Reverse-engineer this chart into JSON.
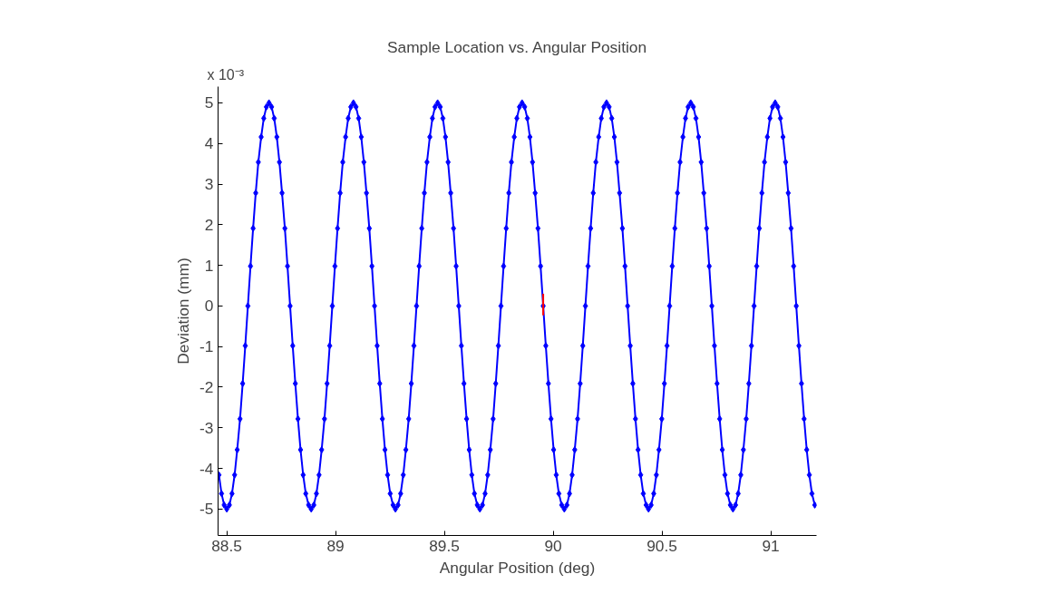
{
  "chart_data": {
    "type": "line",
    "title": "Sample Location vs. Angular Position",
    "xlabel": "Angular Position (deg)",
    "ylabel": "Deviation (mm)",
    "annotations": [
      "x 10⁻³"
    ],
    "xlim": [
      88.46,
      91.21
    ],
    "ylim": [
      -5.65,
      5.4
    ],
    "xticks": [
      88.5,
      89,
      89.5,
      90,
      90.5,
      91
    ],
    "yticks": [
      -5,
      -4,
      -3,
      -2,
      -1,
      0,
      1,
      2,
      3,
      4,
      5
    ],
    "grid": false,
    "marker": "diamond",
    "line_style": "solid",
    "series": [
      {
        "color": "#0000ff",
        "x": [
          88.464,
          88.476,
          88.488,
          88.5,
          88.512,
          88.524,
          88.536,
          88.548,
          88.561,
          88.573,
          88.585,
          88.597,
          88.609,
          88.621,
          88.633,
          88.645,
          88.658,
          88.67,
          88.682,
          88.694,
          88.706,
          88.718,
          88.73,
          88.742,
          88.754,
          88.767,
          88.779,
          88.791,
          88.803,
          88.815,
          88.827,
          88.839,
          88.851,
          88.863,
          88.876,
          88.888,
          88.9,
          88.912,
          88.924,
          88.936,
          88.949,
          88.961,
          88.973,
          88.985,
          88.997,
          89.009,
          89.021,
          89.033,
          89.046,
          89.058,
          89.07,
          89.082,
          89.094,
          89.106,
          89.118,
          89.13,
          89.142,
          89.155,
          89.167,
          89.179,
          89.191,
          89.203,
          89.215,
          89.227,
          89.239,
          89.251,
          89.264,
          89.275,
          89.287,
          89.299,
          89.311,
          89.323,
          89.336,
          89.348,
          89.36,
          89.372,
          89.384,
          89.396,
          89.408,
          89.42,
          89.433,
          89.445,
          89.457,
          89.469,
          89.481,
          89.493,
          89.505,
          89.517,
          89.529,
          89.542,
          89.554,
          89.566,
          89.578,
          89.59,
          89.602,
          89.614,
          89.626,
          89.638,
          89.651,
          89.663,
          89.675,
          89.687,
          89.699,
          89.711,
          89.724,
          89.736,
          89.748,
          89.76,
          89.772,
          89.784,
          89.796,
          89.808,
          89.821,
          89.833,
          89.845,
          89.857,
          89.869,
          89.881,
          89.893,
          89.905,
          89.917,
          89.93,
          89.942,
          89.954,
          89.966,
          89.978,
          89.99,
          90.002,
          90.014,
          90.026,
          90.039,
          90.051,
          90.063,
          90.075,
          90.087,
          90.099,
          90.112,
          90.124,
          90.136,
          90.148,
          90.16,
          90.172,
          90.184,
          90.196,
          90.209,
          90.221,
          90.233,
          90.245,
          90.257,
          90.269,
          90.281,
          90.293,
          90.305,
          90.318,
          90.33,
          90.342,
          90.354,
          90.366,
          90.378,
          90.39,
          90.402,
          90.414,
          90.427,
          90.438,
          90.45,
          90.462,
          90.474,
          90.486,
          90.499,
          90.511,
          90.523,
          90.535,
          90.547,
          90.559,
          90.571,
          90.583,
          90.596,
          90.608,
          90.62,
          90.632,
          90.644,
          90.656,
          90.668,
          90.68,
          90.692,
          90.705,
          90.717,
          90.729,
          90.741,
          90.753,
          90.765,
          90.777,
          90.789,
          90.801,
          90.814,
          90.826,
          90.838,
          90.85,
          90.862,
          90.874,
          90.887,
          90.899,
          90.911,
          90.923,
          90.935,
          90.947,
          90.959,
          90.971,
          90.984,
          90.996,
          91.008,
          91.02,
          91.032,
          91.044,
          91.056,
          91.068,
          91.08,
          91.093,
          91.105,
          91.117,
          91.129,
          91.141,
          91.153,
          91.165,
          91.177,
          91.189,
          91.202
        ],
        "values": [
          -4.16,
          -4.62,
          -4.9,
          -5,
          -4.9,
          -4.62,
          -4.16,
          -3.54,
          -2.78,
          -1.91,
          -0.98,
          0,
          0.98,
          1.91,
          2.78,
          3.54,
          4.16,
          4.62,
          4.9,
          5,
          4.9,
          4.62,
          4.16,
          3.54,
          2.78,
          1.91,
          0.98,
          0,
          -0.98,
          -1.91,
          -2.78,
          -3.54,
          -4.16,
          -4.62,
          -4.9,
          -5,
          -4.9,
          -4.62,
          -4.16,
          -3.54,
          -2.78,
          -1.91,
          -0.98,
          0,
          0.98,
          1.91,
          2.78,
          3.54,
          4.16,
          4.62,
          4.9,
          5,
          4.9,
          4.62,
          4.16,
          3.54,
          2.78,
          1.91,
          0.98,
          0,
          -0.98,
          -1.91,
          -2.78,
          -3.54,
          -4.16,
          -4.62,
          -4.9,
          -5,
          -4.9,
          -4.62,
          -4.16,
          -3.54,
          -2.78,
          -1.91,
          -0.98,
          0,
          0.98,
          1.91,
          2.78,
          3.54,
          4.16,
          4.62,
          4.9,
          5,
          4.9,
          4.62,
          4.16,
          3.54,
          2.78,
          1.91,
          0.98,
          0,
          -0.98,
          -1.91,
          -2.78,
          -3.54,
          -4.16,
          -4.62,
          -4.9,
          -5,
          -4.9,
          -4.62,
          -4.16,
          -3.54,
          -2.78,
          -1.91,
          -0.98,
          0,
          0.98,
          1.91,
          2.78,
          3.54,
          4.16,
          4.62,
          4.9,
          5,
          4.9,
          4.62,
          4.16,
          3.54,
          2.78,
          1.91,
          0.98,
          0,
          -0.98,
          -1.91,
          -2.78,
          -3.54,
          -4.16,
          -4.62,
          -4.9,
          -5,
          -4.9,
          -4.62,
          -4.16,
          -3.54,
          -2.78,
          -1.91,
          -0.98,
          0,
          0.98,
          1.91,
          2.78,
          3.54,
          4.16,
          4.62,
          4.9,
          5,
          4.9,
          4.62,
          4.16,
          3.54,
          2.78,
          1.91,
          0.98,
          0,
          -0.98,
          -1.91,
          -2.78,
          -3.54,
          -4.16,
          -4.62,
          -4.9,
          -5,
          -4.9,
          -4.62,
          -4.16,
          -3.54,
          -2.78,
          -1.91,
          -0.98,
          0,
          0.98,
          1.91,
          2.78,
          3.54,
          4.16,
          4.62,
          4.9,
          5,
          4.9,
          4.62,
          4.16,
          3.54,
          2.78,
          1.91,
          0.98,
          0,
          -0.98,
          -1.91,
          -2.78,
          -3.54,
          -4.16,
          -4.62,
          -4.9,
          -5,
          -4.9,
          -4.62,
          -4.16,
          -3.54,
          -2.78,
          -1.91,
          -0.98,
          0,
          0.98,
          1.91,
          2.78,
          3.54,
          4.16,
          4.62,
          4.9,
          5,
          4.9,
          4.62,
          4.16,
          3.54,
          2.78,
          1.91,
          0.98,
          0,
          -0.98,
          -1.91,
          -2.78,
          -3.54,
          -4.16,
          -4.62,
          -4.9
        ]
      },
      {
        "color": "#ff0000",
        "marker": "none",
        "x": [
          89.954,
          89.954
        ],
        "values": [
          0.3,
          -0.23
        ]
      }
    ]
  }
}
